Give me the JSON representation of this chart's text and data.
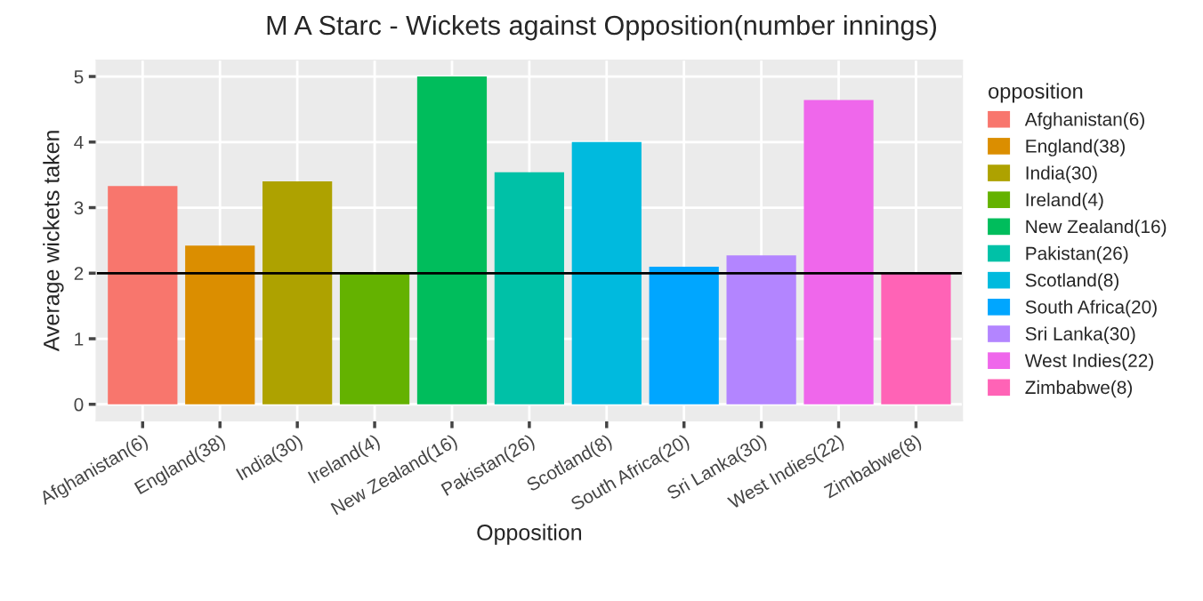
{
  "chart_data": {
    "type": "bar",
    "title": "M A Starc - Wickets against Opposition(number innings)",
    "xlabel": "Opposition",
    "ylabel": "Average wickets taken",
    "legend_title": "opposition",
    "categories": [
      "Afghanistan(6)",
      "England(38)",
      "India(30)",
      "Ireland(4)",
      "New Zealand(16)",
      "Pakistan(26)",
      "Scotland(8)",
      "South Africa(20)",
      "Sri Lanka(30)",
      "West Indies(22)",
      "Zimbabwe(8)"
    ],
    "series": [
      {
        "name": "Afghanistan(6)",
        "color": "#f8766d",
        "values": [
          3.33,
          null,
          null,
          null,
          null,
          null,
          null,
          null,
          null,
          null,
          null
        ]
      },
      {
        "name": "England(38)",
        "color": "#db8e00",
        "values": [
          null,
          2.42,
          null,
          null,
          null,
          null,
          null,
          null,
          null,
          null,
          null
        ]
      },
      {
        "name": "India(30)",
        "color": "#aea200",
        "values": [
          null,
          null,
          3.4,
          null,
          null,
          null,
          null,
          null,
          null,
          null,
          null
        ]
      },
      {
        "name": "Ireland(4)",
        "color": "#64b200",
        "values": [
          null,
          null,
          null,
          2.0,
          null,
          null,
          null,
          null,
          null,
          null,
          null
        ]
      },
      {
        "name": "New Zealand(16)",
        "color": "#00bd5c",
        "values": [
          null,
          null,
          null,
          null,
          5.0,
          null,
          null,
          null,
          null,
          null,
          null
        ]
      },
      {
        "name": "Pakistan(26)",
        "color": "#00c1a7",
        "values": [
          null,
          null,
          null,
          null,
          null,
          3.54,
          null,
          null,
          null,
          null,
          null
        ]
      },
      {
        "name": "Scotland(8)",
        "color": "#00bade",
        "values": [
          null,
          null,
          null,
          null,
          null,
          null,
          4.0,
          null,
          null,
          null,
          null
        ]
      },
      {
        "name": "South Africa(20)",
        "color": "#00a6ff",
        "values": [
          null,
          null,
          null,
          null,
          null,
          null,
          null,
          2.1,
          null,
          null,
          null
        ]
      },
      {
        "name": "Sri Lanka(30)",
        "color": "#b385ff",
        "values": [
          null,
          null,
          null,
          null,
          null,
          null,
          null,
          null,
          2.27,
          null,
          null
        ]
      },
      {
        "name": "West Indies(22)",
        "color": "#ef67eb",
        "values": [
          null,
          null,
          null,
          null,
          null,
          null,
          null,
          null,
          null,
          4.64,
          null
        ]
      },
      {
        "name": "Zimbabwe(8)",
        "color": "#ff63b6",
        "values": [
          null,
          null,
          null,
          null,
          null,
          null,
          null,
          null,
          null,
          null,
          2.0
        ]
      }
    ],
    "ylim": [
      -0.25,
      5.25
    ],
    "yticks": [
      0,
      1,
      2,
      3,
      4,
      5
    ],
    "ref_lines": [
      {
        "axis": "y",
        "value": 2,
        "color": "#000000"
      }
    ],
    "grid": true,
    "legend": "right"
  }
}
